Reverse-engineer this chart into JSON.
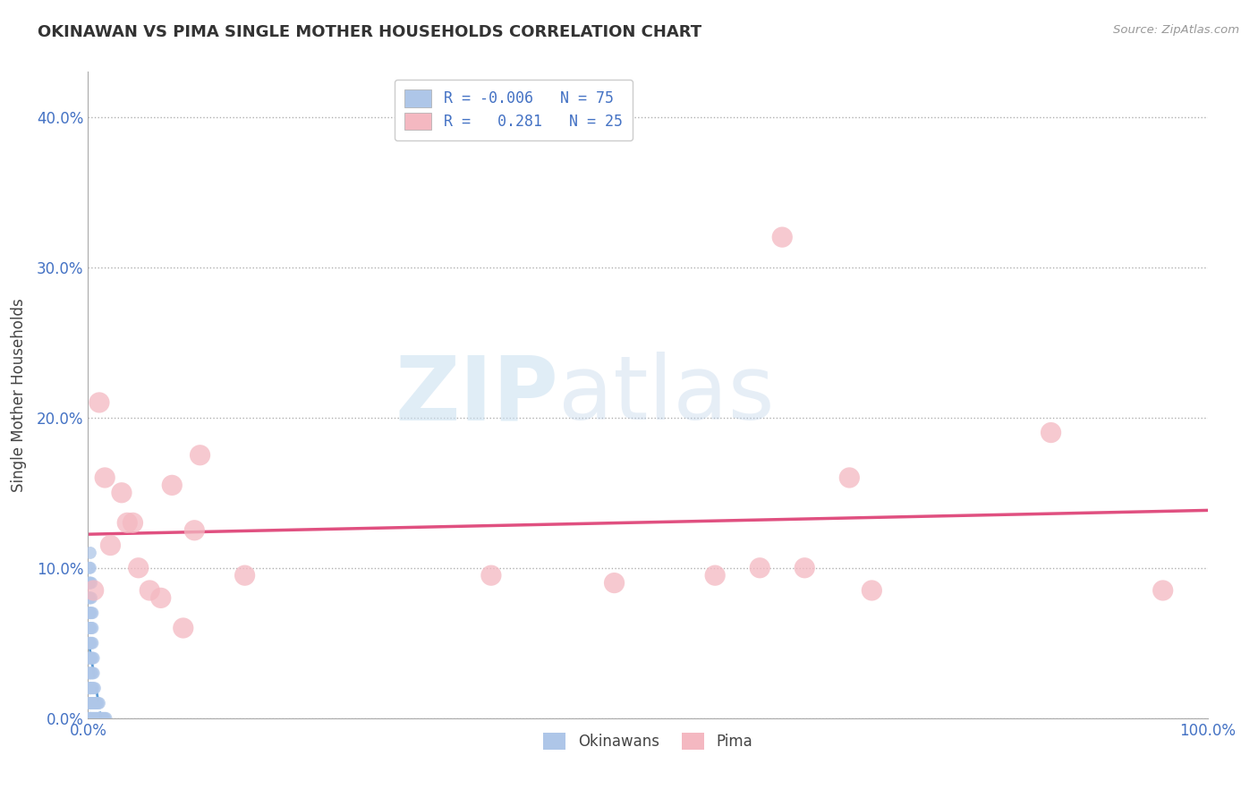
{
  "title": "OKINAWAN VS PIMA SINGLE MOTHER HOUSEHOLDS CORRELATION CHART",
  "source": "Source: ZipAtlas.com",
  "ylabel": "Single Mother Households",
  "xlim": [
    0.0,
    1.0
  ],
  "ylim": [
    0.0,
    0.43
  ],
  "yticks": [
    0.0,
    0.1,
    0.2,
    0.3,
    0.4
  ],
  "ytick_labels": [
    "0.0%",
    "10.0%",
    "20.0%",
    "30.0%",
    "40.0%"
  ],
  "xticks": [
    0.0,
    0.25,
    0.5,
    0.75,
    1.0
  ],
  "xtick_labels": [
    "0.0%",
    "",
    "",
    "",
    "100.0%"
  ],
  "legend_r_okinawan": "-0.006",
  "legend_n_okinawan": "75",
  "legend_r_pima": "0.281",
  "legend_n_pima": "25",
  "okinawan_color": "#aec6e8",
  "pima_color": "#f4b8c1",
  "okinawan_line_color": "#5b9bd5",
  "pima_line_color": "#e05080",
  "watermark_zip": "ZIP",
  "watermark_atlas": "atlas",
  "background_color": "#ffffff",
  "okinawan_scatter_x": [
    0.001,
    0.001,
    0.001,
    0.001,
    0.001,
    0.001,
    0.001,
    0.001,
    0.001,
    0.001,
    0.001,
    0.001,
    0.001,
    0.001,
    0.001,
    0.001,
    0.001,
    0.001,
    0.001,
    0.001,
    0.002,
    0.002,
    0.002,
    0.002,
    0.002,
    0.002,
    0.002,
    0.002,
    0.002,
    0.002,
    0.002,
    0.002,
    0.002,
    0.002,
    0.002,
    0.003,
    0.003,
    0.003,
    0.003,
    0.003,
    0.003,
    0.003,
    0.003,
    0.003,
    0.003,
    0.004,
    0.004,
    0.004,
    0.004,
    0.004,
    0.004,
    0.004,
    0.004,
    0.005,
    0.005,
    0.005,
    0.005,
    0.005,
    0.006,
    0.006,
    0.006,
    0.007,
    0.007,
    0.008,
    0.008,
    0.009,
    0.009,
    0.01,
    0.01,
    0.011,
    0.012,
    0.013,
    0.014,
    0.015,
    0.016
  ],
  "okinawan_scatter_y": [
    0.0,
    0.01,
    0.01,
    0.02,
    0.02,
    0.03,
    0.03,
    0.04,
    0.04,
    0.05,
    0.05,
    0.06,
    0.06,
    0.07,
    0.07,
    0.08,
    0.08,
    0.09,
    0.09,
    0.1,
    0.0,
    0.01,
    0.02,
    0.03,
    0.04,
    0.05,
    0.06,
    0.07,
    0.08,
    0.09,
    0.1,
    0.11,
    0.0,
    0.01,
    0.02,
    0.0,
    0.01,
    0.02,
    0.03,
    0.04,
    0.05,
    0.06,
    0.07,
    0.08,
    0.09,
    0.0,
    0.01,
    0.02,
    0.03,
    0.04,
    0.05,
    0.06,
    0.07,
    0.0,
    0.01,
    0.02,
    0.03,
    0.04,
    0.0,
    0.01,
    0.02,
    0.0,
    0.01,
    0.0,
    0.01,
    0.0,
    0.01,
    0.0,
    0.01,
    0.0,
    0.0,
    0.0,
    0.0,
    0.0,
    0.0
  ],
  "pima_scatter_x": [
    0.005,
    0.01,
    0.015,
    0.02,
    0.03,
    0.035,
    0.04,
    0.045,
    0.055,
    0.065,
    0.075,
    0.085,
    0.095,
    0.1,
    0.14,
    0.36,
    0.47,
    0.56,
    0.6,
    0.62,
    0.64,
    0.68,
    0.7,
    0.86,
    0.96
  ],
  "pima_scatter_y": [
    0.085,
    0.21,
    0.16,
    0.115,
    0.15,
    0.13,
    0.13,
    0.1,
    0.085,
    0.08,
    0.155,
    0.06,
    0.125,
    0.175,
    0.095,
    0.095,
    0.09,
    0.095,
    0.1,
    0.32,
    0.1,
    0.16,
    0.085,
    0.19,
    0.085
  ]
}
